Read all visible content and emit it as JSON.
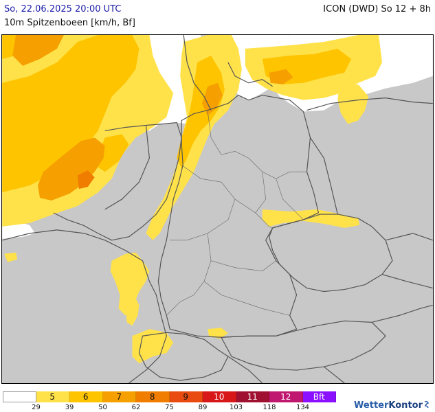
{
  "header": {
    "title_left": "So, 22.06.2025 20:00 UTC",
    "title_right": "ICON (DWD) So 12 + 8h",
    "subtitle": "10m Spitzenboeen [km/h, Bf]"
  },
  "colors": {
    "land": "#c8c8c8",
    "sea_calm": "#ffffff",
    "bf5": "#ffe24a",
    "bf6": "#ffc400",
    "bf7": "#f5a000",
    "bf8": "#f07d00",
    "border": "#555555"
  },
  "legend": {
    "cells": [
      {
        "label": "",
        "color": "#ffffff"
      },
      {
        "label": "5",
        "color": "#ffe24a"
      },
      {
        "label": "6",
        "color": "#ffc400"
      },
      {
        "label": "7",
        "color": "#f5a000"
      },
      {
        "label": "8",
        "color": "#f07d00"
      },
      {
        "label": "9",
        "color": "#e84a10"
      },
      {
        "label": "10",
        "color": "#d81818"
      },
      {
        "label": "11",
        "color": "#a01030"
      },
      {
        "label": "12",
        "color": "#c01870"
      },
      {
        "label": "Bft",
        "color": "#8a10ff"
      }
    ],
    "ticks": [
      "29",
      "39",
      "50",
      "62",
      "75",
      "89",
      "103",
      "118",
      "134"
    ]
  },
  "logo": {
    "part1": "Wetter",
    "part2": "Kontor"
  }
}
